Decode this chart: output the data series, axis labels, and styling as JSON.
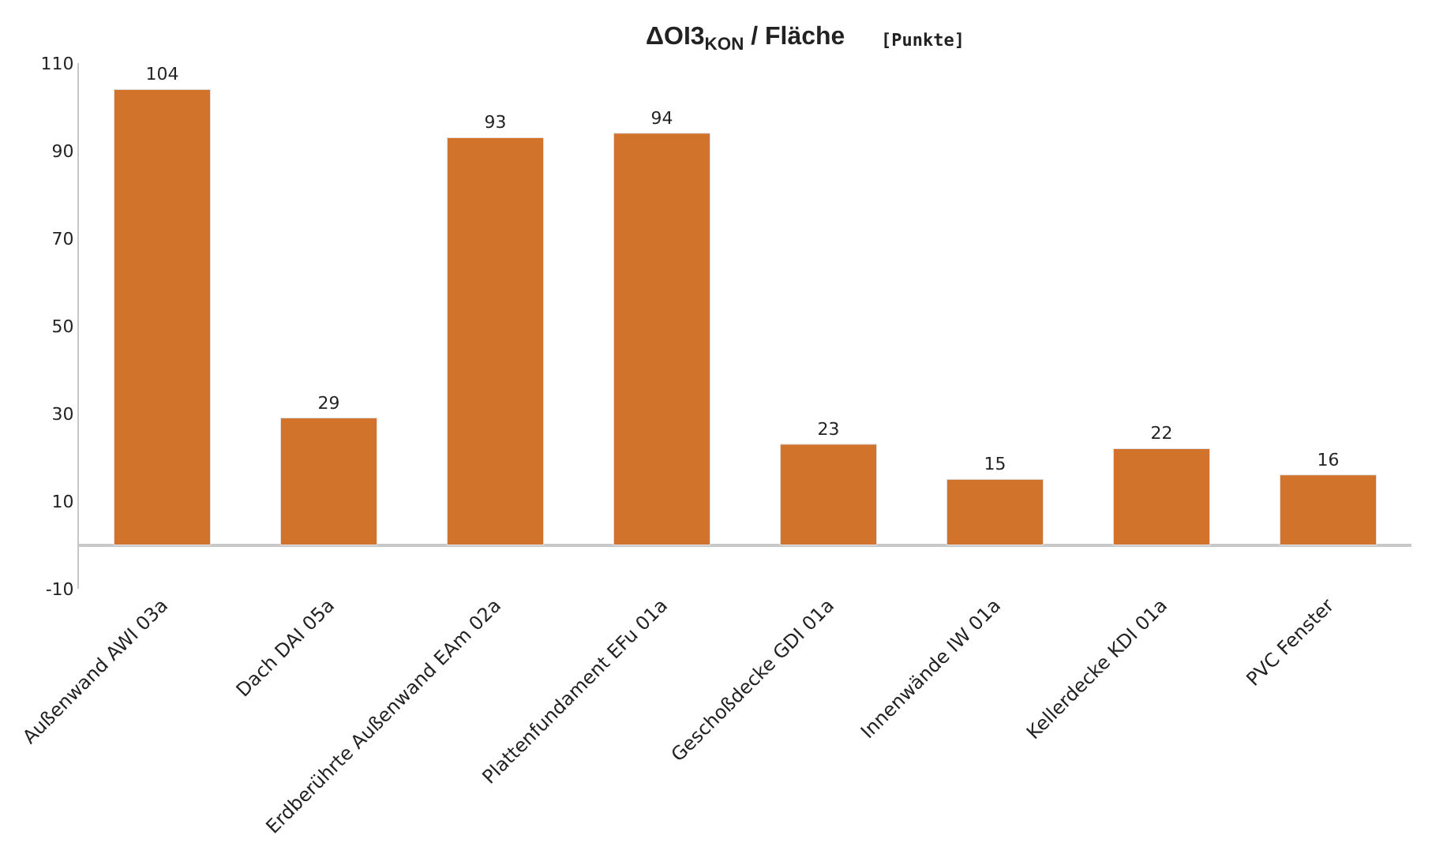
{
  "chart_data": {
    "type": "bar",
    "title": "ΔOI3$_{KON}$ / Fläche",
    "subtitle": "[Punkte]",
    "categories": [
      "Außenwand AWI 03a",
      "Dach DAI 05a",
      "Erdberührte Außenwand EAm 02a",
      "Plattenfundament EFu 01a",
      "Geschoßdecke GDI 01a",
      "Innenwände IW 01a",
      "Kellerdecke KDI 01a",
      "PVC Fenster"
    ],
    "values": [
      104,
      29,
      93,
      94,
      23,
      15,
      22,
      16
    ],
    "color": "#d2732b",
    "ylim": [
      -10,
      110
    ],
    "yticks": [
      -10,
      10,
      30,
      50,
      70,
      90,
      110
    ],
    "data_labels": true
  }
}
